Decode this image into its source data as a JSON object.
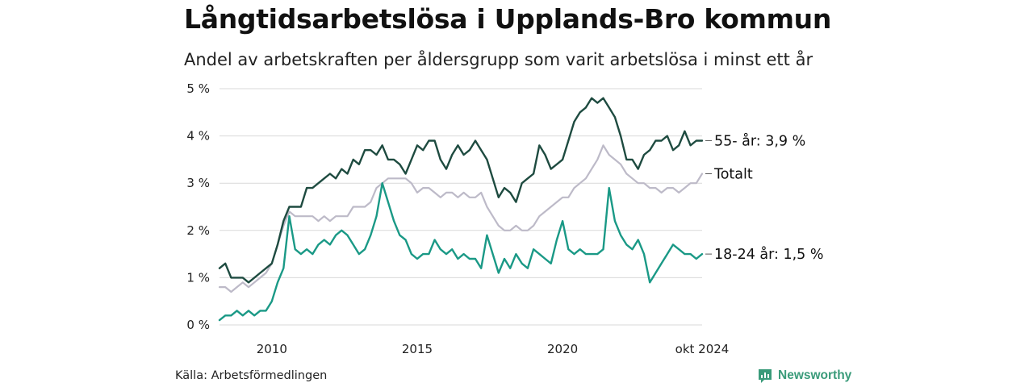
{
  "chart_data": {
    "type": "line",
    "title": "Långtidsarbetslösa i Upplands-Bro kommun",
    "subtitle": "Andel av arbetskraften per åldersgrupp som varit arbetslösa i minst ett år",
    "xlabel": "",
    "ylabel": "",
    "xlim": [
      2008.2,
      2024.8
    ],
    "ylim": [
      0,
      5
    ],
    "yticks": [
      0,
      1,
      2,
      3,
      4,
      5
    ],
    "ytick_labels": [
      "0 %",
      "1 %",
      "2 %",
      "3 %",
      "4 %",
      "5 %"
    ],
    "xticks": [
      2010,
      2015,
      2020,
      2024.8
    ],
    "xtick_labels": [
      "2010",
      "2015",
      "2020",
      "okt 2024"
    ],
    "grid": true,
    "series": [
      {
        "name": "Totalt",
        "label": "Totalt",
        "color": "#bdbac8",
        "x": [
          2008.2,
          2008.4,
          2008.6,
          2008.8,
          2009.0,
          2009.2,
          2009.4,
          2009.6,
          2009.8,
          2010.0,
          2010.2,
          2010.4,
          2010.6,
          2010.8,
          2011.0,
          2011.2,
          2011.4,
          2011.6,
          2011.8,
          2012.0,
          2012.2,
          2012.4,
          2012.6,
          2012.8,
          2013.0,
          2013.2,
          2013.4,
          2013.6,
          2013.8,
          2014.0,
          2014.2,
          2014.4,
          2014.6,
          2014.8,
          2015.0,
          2015.2,
          2015.4,
          2015.6,
          2015.8,
          2016.0,
          2016.2,
          2016.4,
          2016.6,
          2016.8,
          2017.0,
          2017.2,
          2017.4,
          2017.6,
          2017.8,
          2018.0,
          2018.2,
          2018.4,
          2018.6,
          2018.8,
          2019.0,
          2019.2,
          2019.4,
          2019.6,
          2019.8,
          2020.0,
          2020.2,
          2020.4,
          2020.6,
          2020.8,
          2021.0,
          2021.2,
          2021.4,
          2021.6,
          2021.8,
          2022.0,
          2022.2,
          2022.4,
          2022.6,
          2022.8,
          2023.0,
          2023.2,
          2023.4,
          2023.6,
          2023.8,
          2024.0,
          2024.2,
          2024.4,
          2024.6,
          2024.8
        ],
        "values": [
          0.8,
          0.8,
          0.7,
          0.8,
          0.9,
          0.8,
          0.9,
          1.0,
          1.1,
          1.3,
          1.7,
          2.1,
          2.4,
          2.3,
          2.3,
          2.3,
          2.3,
          2.2,
          2.3,
          2.2,
          2.3,
          2.3,
          2.3,
          2.5,
          2.5,
          2.5,
          2.6,
          2.9,
          3.0,
          3.1,
          3.1,
          3.1,
          3.1,
          3.0,
          2.8,
          2.9,
          2.9,
          2.8,
          2.7,
          2.8,
          2.8,
          2.7,
          2.8,
          2.7,
          2.7,
          2.8,
          2.5,
          2.3,
          2.1,
          2.0,
          2.0,
          2.1,
          2.0,
          2.0,
          2.1,
          2.3,
          2.4,
          2.5,
          2.6,
          2.7,
          2.7,
          2.9,
          3.0,
          3.1,
          3.3,
          3.5,
          3.8,
          3.6,
          3.5,
          3.4,
          3.2,
          3.1,
          3.0,
          3.0,
          2.9,
          2.9,
          2.8,
          2.9,
          2.9,
          2.8,
          2.9,
          3.0,
          3.0,
          3.2
        ]
      },
      {
        "name": "55- år",
        "label": "55- år: 3,9 %",
        "color": "#1e4b40",
        "x": [
          2008.2,
          2008.4,
          2008.6,
          2008.8,
          2009.0,
          2009.2,
          2009.4,
          2009.6,
          2009.8,
          2010.0,
          2010.2,
          2010.4,
          2010.6,
          2010.8,
          2011.0,
          2011.2,
          2011.4,
          2011.6,
          2011.8,
          2012.0,
          2012.2,
          2012.4,
          2012.6,
          2012.8,
          2013.0,
          2013.2,
          2013.4,
          2013.6,
          2013.8,
          2014.0,
          2014.2,
          2014.4,
          2014.6,
          2014.8,
          2015.0,
          2015.2,
          2015.4,
          2015.6,
          2015.8,
          2016.0,
          2016.2,
          2016.4,
          2016.6,
          2016.8,
          2017.0,
          2017.2,
          2017.4,
          2017.6,
          2017.8,
          2018.0,
          2018.2,
          2018.4,
          2018.6,
          2018.8,
          2019.0,
          2019.2,
          2019.4,
          2019.6,
          2019.8,
          2020.0,
          2020.2,
          2020.4,
          2020.6,
          2020.8,
          2021.0,
          2021.2,
          2021.4,
          2021.6,
          2021.8,
          2022.0,
          2022.2,
          2022.4,
          2022.6,
          2022.8,
          2023.0,
          2023.2,
          2023.4,
          2023.6,
          2023.8,
          2024.0,
          2024.2,
          2024.4,
          2024.6,
          2024.8
        ],
        "values": [
          1.2,
          1.3,
          1.0,
          1.0,
          1.0,
          0.9,
          1.0,
          1.1,
          1.2,
          1.3,
          1.7,
          2.2,
          2.5,
          2.5,
          2.5,
          2.9,
          2.9,
          3.0,
          3.1,
          3.2,
          3.1,
          3.3,
          3.2,
          3.5,
          3.4,
          3.7,
          3.7,
          3.6,
          3.8,
          3.5,
          3.5,
          3.4,
          3.2,
          3.5,
          3.8,
          3.7,
          3.9,
          3.9,
          3.5,
          3.3,
          3.6,
          3.8,
          3.6,
          3.7,
          3.9,
          3.7,
          3.5,
          3.1,
          2.7,
          2.9,
          2.8,
          2.6,
          3.0,
          3.1,
          3.2,
          3.8,
          3.6,
          3.3,
          3.4,
          3.5,
          3.9,
          4.3,
          4.5,
          4.6,
          4.8,
          4.7,
          4.8,
          4.6,
          4.4,
          4.0,
          3.5,
          3.5,
          3.3,
          3.6,
          3.7,
          3.9,
          3.9,
          4.0,
          3.7,
          3.8,
          4.1,
          3.8,
          3.9,
          3.9
        ]
      },
      {
        "name": "18-24 år",
        "label": "18-24 år: 1,5 %",
        "color": "#1a9986",
        "x": [
          2008.2,
          2008.4,
          2008.6,
          2008.8,
          2009.0,
          2009.2,
          2009.4,
          2009.6,
          2009.8,
          2010.0,
          2010.2,
          2010.4,
          2010.6,
          2010.8,
          2011.0,
          2011.2,
          2011.4,
          2011.6,
          2011.8,
          2012.0,
          2012.2,
          2012.4,
          2012.6,
          2012.8,
          2013.0,
          2013.2,
          2013.4,
          2013.6,
          2013.8,
          2014.0,
          2014.2,
          2014.4,
          2014.6,
          2014.8,
          2015.0,
          2015.2,
          2015.4,
          2015.6,
          2015.8,
          2016.0,
          2016.2,
          2016.4,
          2016.6,
          2016.8,
          2017.0,
          2017.2,
          2017.4,
          2017.6,
          2017.8,
          2018.0,
          2018.2,
          2018.4,
          2018.6,
          2018.8,
          2019.0,
          2019.2,
          2019.4,
          2019.6,
          2019.8,
          2020.0,
          2020.2,
          2020.4,
          2020.6,
          2020.8,
          2021.0,
          2021.2,
          2021.4,
          2021.6,
          2021.8,
          2022.0,
          2022.2,
          2022.4,
          2022.6,
          2022.8,
          2023.0,
          2023.2,
          2023.4,
          2023.6,
          2023.8,
          2024.0,
          2024.2,
          2024.4,
          2024.6,
          2024.8
        ],
        "values": [
          0.1,
          0.2,
          0.2,
          0.3,
          0.2,
          0.3,
          0.2,
          0.3,
          0.3,
          0.5,
          0.9,
          1.2,
          2.3,
          1.6,
          1.5,
          1.6,
          1.5,
          1.7,
          1.8,
          1.7,
          1.9,
          2.0,
          1.9,
          1.7,
          1.5,
          1.6,
          1.9,
          2.3,
          3.0,
          2.6,
          2.2,
          1.9,
          1.8,
          1.5,
          1.4,
          1.5,
          1.5,
          1.8,
          1.6,
          1.5,
          1.6,
          1.4,
          1.5,
          1.4,
          1.4,
          1.2,
          1.9,
          1.5,
          1.1,
          1.4,
          1.2,
          1.5,
          1.3,
          1.2,
          1.6,
          1.5,
          1.4,
          1.3,
          1.8,
          2.2,
          1.6,
          1.5,
          1.6,
          1.5,
          1.5,
          1.5,
          1.6,
          2.9,
          2.2,
          1.9,
          1.7,
          1.6,
          1.8,
          1.5,
          0.9,
          1.1,
          1.3,
          1.5,
          1.7,
          1.6,
          1.5,
          1.5,
          1.4,
          1.5
        ]
      }
    ]
  },
  "footer": {
    "source": "Källa: Arbetsförmedlingen",
    "brand": "Newsworthy"
  }
}
